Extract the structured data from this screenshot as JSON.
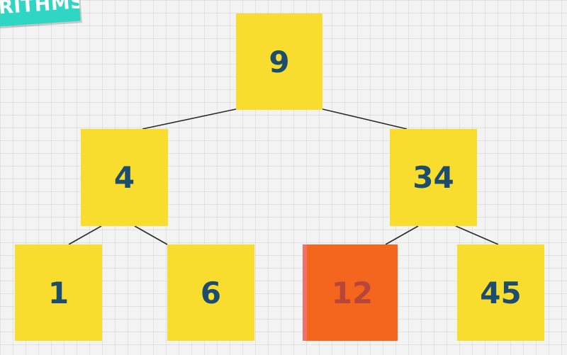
{
  "banner": {
    "text": "RITHMS"
  },
  "colors": {
    "node_fill": "#f8dd2e",
    "node_text": "#1c4d6e",
    "highlight_fill": "#f4661e",
    "highlight_text": "#b8453a",
    "banner": "#2fd6c4",
    "edge": "#2a2a2a"
  },
  "tree": {
    "root": {
      "value": "9"
    },
    "left": {
      "value": "4"
    },
    "right": {
      "value": "34"
    },
    "left_left": {
      "value": "1"
    },
    "left_right": {
      "value": "6"
    },
    "right_left": {
      "value": "12",
      "highlighted": true
    },
    "right_right": {
      "value": "45"
    }
  }
}
